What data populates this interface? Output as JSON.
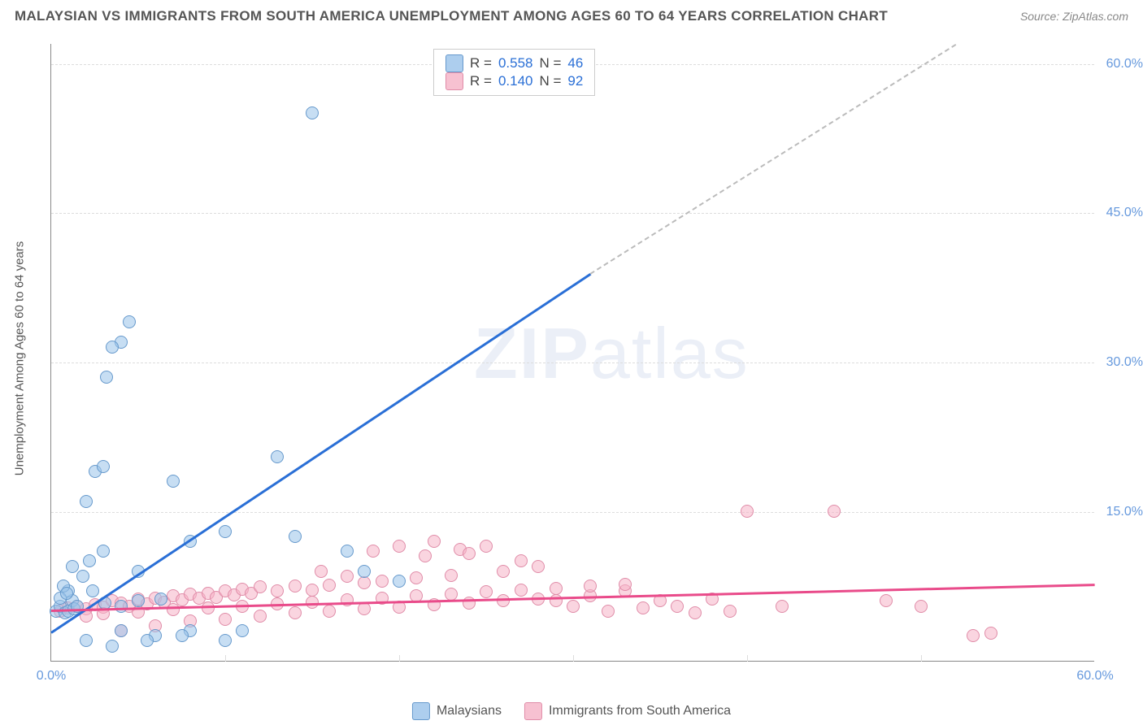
{
  "title": "MALAYSIAN VS IMMIGRANTS FROM SOUTH AMERICA UNEMPLOYMENT AMONG AGES 60 TO 64 YEARS CORRELATION CHART",
  "source": "Source: ZipAtlas.com",
  "ylabel": "Unemployment Among Ages 60 to 64 years",
  "watermark_a": "ZIP",
  "watermark_b": "atlas",
  "chart": {
    "type": "scatter",
    "xlim": [
      0,
      60
    ],
    "ylim": [
      0,
      62
    ],
    "xticks": [
      {
        "v": 0,
        "label": "0.0%"
      },
      {
        "v": 60,
        "label": "60.0%"
      }
    ],
    "xtick_minors": [
      10,
      20,
      30,
      40,
      50
    ],
    "yticks": [
      {
        "v": 15,
        "label": "15.0%"
      },
      {
        "v": 30,
        "label": "30.0%"
      },
      {
        "v": 45,
        "label": "45.0%"
      },
      {
        "v": 60,
        "label": "60.0%"
      }
    ],
    "grid_color": "#dddddd",
    "background_color": "#ffffff",
    "marker_size": 16,
    "series": {
      "blue": {
        "label": "Malaysians",
        "fill": "rgba(153,194,234,0.55)",
        "stroke": "#6699cc",
        "points": [
          [
            0.3,
            5
          ],
          [
            0.5,
            5.5
          ],
          [
            0.8,
            4.8
          ],
          [
            1,
            5
          ],
          [
            1.2,
            6
          ],
          [
            1,
            7
          ],
          [
            1.3,
            5.2
          ],
          [
            0.5,
            6.3
          ],
          [
            0.7,
            7.5
          ],
          [
            1.5,
            5.5
          ],
          [
            2,
            16
          ],
          [
            2.5,
            19
          ],
          [
            3,
            19.5
          ],
          [
            3.2,
            28.5
          ],
          [
            4.5,
            34
          ],
          [
            4,
            32
          ],
          [
            3.5,
            31.5
          ],
          [
            7,
            18
          ],
          [
            3,
            11
          ],
          [
            5,
            9
          ],
          [
            8,
            12
          ],
          [
            10,
            13
          ],
          [
            14,
            12.5
          ],
          [
            13,
            20.5
          ],
          [
            15,
            55
          ],
          [
            17,
            11
          ],
          [
            18,
            9
          ],
          [
            20,
            8
          ],
          [
            2,
            2
          ],
          [
            4,
            3
          ],
          [
            6,
            2.5
          ],
          [
            8,
            3
          ],
          [
            3.5,
            1.5
          ],
          [
            5.5,
            2
          ],
          [
            7.5,
            2.5
          ],
          [
            10,
            2
          ],
          [
            11,
            3
          ],
          [
            5,
            6
          ],
          [
            4,
            5.5
          ],
          [
            2.4,
            7
          ],
          [
            3.1,
            5.8
          ],
          [
            6.3,
            6.2
          ],
          [
            1.8,
            8.5
          ],
          [
            1.2,
            9.5
          ],
          [
            2.2,
            10
          ],
          [
            0.9,
            6.8
          ]
        ],
        "trend": {
          "color": "#2a6fd6",
          "from": [
            0,
            3
          ],
          "to": [
            31,
            39
          ],
          "dash_to": [
            52,
            62
          ]
        }
      },
      "pink": {
        "label": "Immigrants from South America",
        "fill": "rgba(245,178,198,0.55)",
        "stroke": "#e08ca8",
        "points": [
          [
            0.5,
            5
          ],
          [
            1,
            5.3
          ],
          [
            1.5,
            5.5
          ],
          [
            2,
            5.2
          ],
          [
            2.5,
            5.6
          ],
          [
            3,
            5.4
          ],
          [
            3.5,
            6
          ],
          [
            4,
            5.8
          ],
          [
            4.5,
            5.5
          ],
          [
            5,
            6.2
          ],
          [
            5.5,
            5.7
          ],
          [
            6,
            6.3
          ],
          [
            6.5,
            5.9
          ],
          [
            7,
            6.5
          ],
          [
            7.5,
            6.1
          ],
          [
            8,
            6.7
          ],
          [
            8.5,
            6.3
          ],
          [
            9,
            6.8
          ],
          [
            9.5,
            6.4
          ],
          [
            10,
            7
          ],
          [
            10.5,
            6.6
          ],
          [
            11,
            7.2
          ],
          [
            11.5,
            6.8
          ],
          [
            12,
            7.4
          ],
          [
            13,
            7
          ],
          [
            14,
            7.5
          ],
          [
            15,
            7.1
          ],
          [
            15.5,
            9
          ],
          [
            16,
            7.6
          ],
          [
            17,
            8.5
          ],
          [
            18,
            7.8
          ],
          [
            18.5,
            11
          ],
          [
            19,
            8
          ],
          [
            20,
            11.5
          ],
          [
            21,
            8.3
          ],
          [
            21.5,
            10.5
          ],
          [
            22,
            12
          ],
          [
            23,
            8.6
          ],
          [
            23.5,
            11.2
          ],
          [
            24,
            10.8
          ],
          [
            25,
            11.5
          ],
          [
            26,
            9
          ],
          [
            27,
            10
          ],
          [
            28,
            9.5
          ],
          [
            29,
            6
          ],
          [
            30,
            5.5
          ],
          [
            31,
            6.5
          ],
          [
            32,
            5
          ],
          [
            33,
            7
          ],
          [
            34,
            5.3
          ],
          [
            35,
            6
          ],
          [
            36,
            5.5
          ],
          [
            37,
            4.8
          ],
          [
            38,
            6.2
          ],
          [
            39,
            5
          ],
          [
            40,
            15
          ],
          [
            42,
            5.5
          ],
          [
            45,
            15
          ],
          [
            48,
            6
          ],
          [
            50,
            5.5
          ],
          [
            53,
            2.5
          ],
          [
            54,
            2.8
          ],
          [
            4,
            3
          ],
          [
            6,
            3.5
          ],
          [
            8,
            4
          ],
          [
            10,
            4.2
          ],
          [
            12,
            4.5
          ],
          [
            14,
            4.8
          ],
          [
            16,
            5
          ],
          [
            18,
            5.2
          ],
          [
            20,
            5.4
          ],
          [
            22,
            5.6
          ],
          [
            24,
            5.8
          ],
          [
            26,
            6
          ],
          [
            28,
            6.2
          ],
          [
            2,
            4.5
          ],
          [
            3,
            4.7
          ],
          [
            5,
            4.9
          ],
          [
            7,
            5.1
          ],
          [
            9,
            5.3
          ],
          [
            11,
            5.5
          ],
          [
            13,
            5.7
          ],
          [
            15,
            5.9
          ],
          [
            17,
            6.1
          ],
          [
            19,
            6.3
          ],
          [
            21,
            6.5
          ],
          [
            23,
            6.7
          ],
          [
            25,
            6.9
          ],
          [
            27,
            7.1
          ],
          [
            29,
            7.3
          ],
          [
            31,
            7.5
          ],
          [
            33,
            7.7
          ]
        ],
        "trend": {
          "color": "#e94b8a",
          "from": [
            0,
            5.2
          ],
          "to": [
            60,
            7.8
          ]
        }
      }
    }
  },
  "stats": {
    "rows": [
      {
        "swatch": "blue",
        "r_label": "R =",
        "r": "0.558",
        "n_label": "N =",
        "n": "46"
      },
      {
        "swatch": "pink",
        "r_label": "R =",
        "r": "0.140",
        "n_label": "N =",
        "n": "92"
      }
    ]
  },
  "legend": {
    "items": [
      {
        "swatch": "blue",
        "label": "Malaysians"
      },
      {
        "swatch": "pink",
        "label": "Immigrants from South America"
      }
    ]
  }
}
